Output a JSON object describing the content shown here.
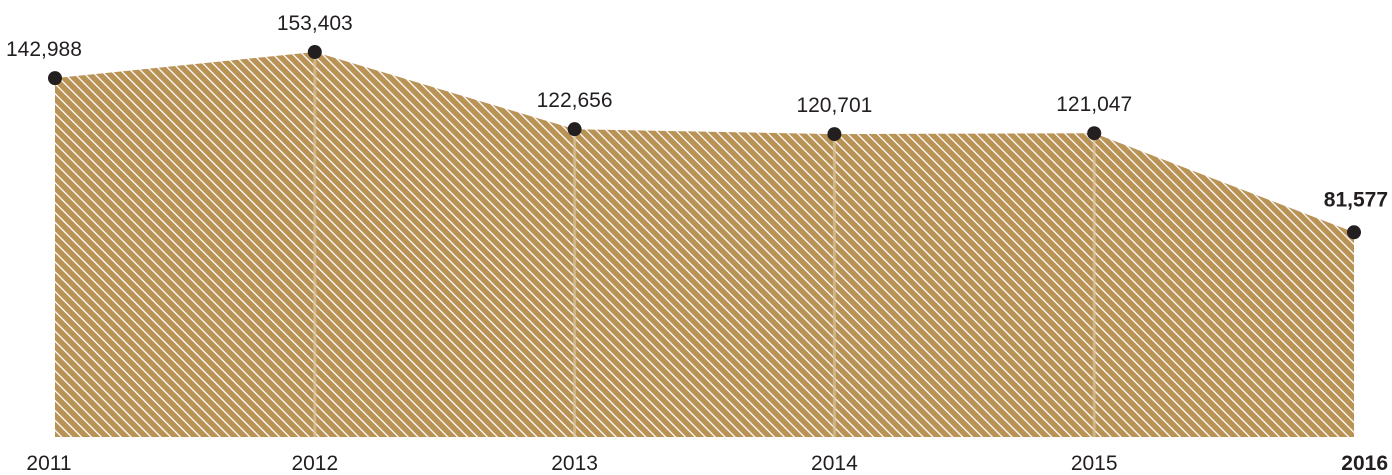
{
  "chart_data": {
    "type": "area",
    "categories": [
      "2011",
      "2012",
      "2013",
      "2014",
      "2015",
      "2016"
    ],
    "values": [
      142988,
      153403,
      122656,
      120701,
      121047,
      81577
    ],
    "value_labels": [
      "142,988",
      "153,403",
      "122,656",
      "120,701",
      "121,047",
      "81,577"
    ],
    "highlight_index": 5,
    "ylim": [
      0,
      175000
    ],
    "grid": false,
    "legend": "none",
    "title": "",
    "xlabel": "",
    "ylabel": "",
    "colors": {
      "fill": "#b99255",
      "hatch": "#ffffff",
      "marker": "#231f20",
      "text": "#231f20"
    }
  }
}
